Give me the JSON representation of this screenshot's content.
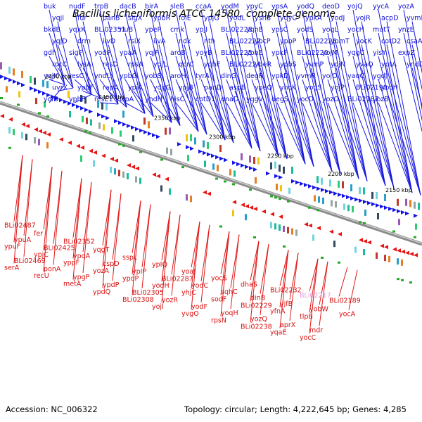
{
  "title": "Bacillus licheniformis ATCC 14580, complete genome",
  "footer": {
    "accession": "Accession: NC_006322",
    "topology": "Topology: circular; Length: 4,222,645 bp; Genes: 4,285"
  },
  "kbp_labels": [
    "2450 kbp",
    "2400 kbp",
    "2350 kbp",
    "2300 kbp",
    "2250 kbp",
    "2200 kbp",
    "2150 kbp"
  ],
  "colors": {
    "forward": "#1414e6",
    "reverse": "#e61414",
    "highlight": "#e79ad9"
  },
  "top_labels": [
    "buk",
    "yqjI",
    "bkdB",
    "yqjD",
    "gdh",
    "rocC",
    "yqjK",
    "uvrX",
    "yolD",
    "nudF",
    "fur",
    "yqxK",
    "drm",
    "sigF",
    "lysA",
    "resC",
    "ypbF",
    "yphF",
    "trpB",
    "panB",
    "BLi02351",
    "ilvD",
    "yodP",
    "resD",
    "yndL",
    "rapA",
    "resE1",
    "dacB",
    "sigX",
    "rluB",
    "rsiX",
    "ypaA",
    "rpsA",
    "ypbG",
    "ypjA",
    "trpA",
    "birA",
    "ypbR",
    "ypeP",
    "ilvA",
    "yqjF",
    "yojL",
    "yobS",
    "ydgG",
    "yndH",
    "sleB",
    "folE",
    "cmk",
    "ndk",
    "aroB",
    "qcrC",
    "aroH",
    "ypjB",
    "hisC",
    "ccaA",
    "ypjG",
    "ypjI",
    "nth",
    "yoyB",
    "yqhF",
    "tyrA",
    "panD",
    "cotD1",
    "yodM",
    "yodL",
    "BLi02228",
    "BLi02227",
    "BLi02225",
    "BLi02224",
    "dinG",
    "aspB",
    "dnaD",
    "ypyC",
    "yshB",
    "yqhB",
    "ypcP",
    "ypbE",
    "ypeR",
    "degR",
    "ypeQ",
    "yqgV",
    "ypsA",
    "yqyC",
    "ypsC",
    "ypbP",
    "ypkF",
    "ypbS",
    "ypkD",
    "yhcK",
    "degS",
    "yodQ",
    "ypkA",
    "yodS",
    "BLi02226",
    "BLi02220",
    "yvmP",
    "yvmR",
    "yogS",
    "yocD",
    "deoD",
    "yodJ",
    "yoqL",
    "ypmT",
    "yojM",
    "yojN",
    "yojO",
    "yojP",
    "yozO",
    "yojQ",
    "yojR",
    "yocH",
    "yocK",
    "yqgC",
    "yvaQ",
    "yaqC",
    "BLi02190",
    "BLi02187",
    "yycA",
    "acpD",
    "mutT",
    "cotD2",
    "yisY",
    "yptA",
    "ygdJ",
    "yocH",
    "yozB",
    "yozA",
    "yvmB",
    "ynzE",
    "csaA",
    "expZ",
    "yndD"
  ],
  "bottom_labels": [
    "BLi02487",
    "ypuA",
    "ypuF",
    "BLi02469",
    "serA",
    "fer",
    "BLi02425",
    "ypjC",
    "ponA",
    "recU",
    "BLi02352",
    "ypqA",
    "yppF",
    "ypgP",
    "metA",
    "yqgT",
    "cspD",
    "yozA",
    "ypdP",
    "ypdQ",
    "sspL",
    "ypIP",
    "ypoP",
    "BLi02305",
    "BLi02308",
    "ypIQ",
    "BLi02287",
    "yodH",
    "yozR",
    "yojI",
    "yoaJ",
    "yodC",
    "yhjC",
    "yodF",
    "yvgO",
    "yocS",
    "sqhC",
    "sodF",
    "yoqH",
    "rpsN",
    "dhaS",
    "dinB",
    "BLi02229",
    "yozQ",
    "BLi02238",
    "BLi02232",
    "yjfB",
    "yfnA",
    "aprX",
    "yqaE",
    "BLi02217",
    "yobW",
    "tlpB",
    "mdr",
    "yocC",
    "BLi02189",
    "yocA"
  ]
}
